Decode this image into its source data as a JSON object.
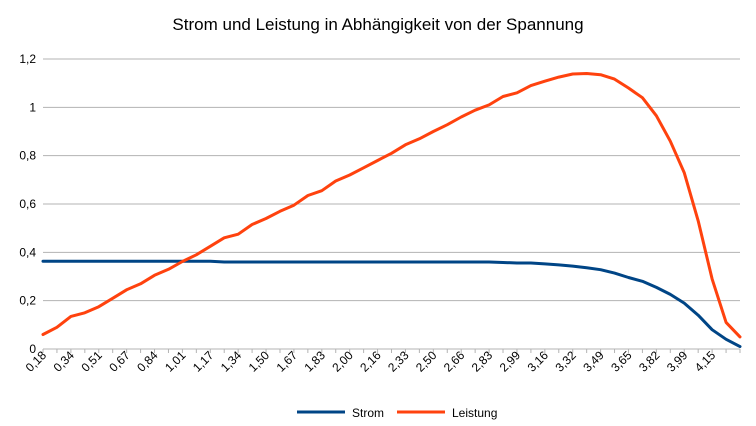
{
  "chart_data": {
    "type": "line",
    "title": "Strom und Leistung in Abhängigkeit von der Spannung",
    "xlabel": "",
    "ylabel": "",
    "ylim": [
      0,
      1.2
    ],
    "y_ticks": [
      "0",
      "0,2",
      "0,4",
      "0,6",
      "0,8",
      "1",
      "1,2"
    ],
    "y_tick_values": [
      0,
      0.2,
      0.4,
      0.6,
      0.8,
      1.0,
      1.2
    ],
    "x_tick_labels": [
      "0,18",
      "0,34",
      "0,51",
      "0,67",
      "0,84",
      "1,01",
      "1,17",
      "1,34",
      "1,50",
      "1,67",
      "1,83",
      "2,00",
      "2,16",
      "2,33",
      "2,50",
      "2,66",
      "2,83",
      "2,99",
      "3,16",
      "3,32",
      "3,49",
      "3,65",
      "3,82",
      "3,99",
      "4,15"
    ],
    "grid": true,
    "legend_position": "bottom",
    "x": [
      0.18,
      0.26,
      0.34,
      0.42,
      0.51,
      0.59,
      0.67,
      0.75,
      0.84,
      0.92,
      1.01,
      1.09,
      1.17,
      1.26,
      1.34,
      1.42,
      1.5,
      1.58,
      1.67,
      1.75,
      1.83,
      1.92,
      2.0,
      2.08,
      2.16,
      2.24,
      2.33,
      2.41,
      2.5,
      2.58,
      2.66,
      2.74,
      2.83,
      2.91,
      2.99,
      3.07,
      3.16,
      3.24,
      3.32,
      3.4,
      3.49,
      3.57,
      3.65,
      3.73,
      3.82,
      3.9,
      3.99,
      4.07,
      4.15,
      4.23,
      4.31
    ],
    "series": [
      {
        "name": "Strom",
        "color": "#004586",
        "values": [
          0.363,
          0.363,
          0.363,
          0.363,
          0.363,
          0.363,
          0.363,
          0.363,
          0.363,
          0.363,
          0.363,
          0.363,
          0.363,
          0.36,
          0.36,
          0.36,
          0.36,
          0.36,
          0.36,
          0.36,
          0.36,
          0.36,
          0.36,
          0.36,
          0.36,
          0.36,
          0.36,
          0.36,
          0.36,
          0.36,
          0.36,
          0.36,
          0.36,
          0.358,
          0.356,
          0.356,
          0.352,
          0.348,
          0.343,
          0.336,
          0.328,
          0.314,
          0.296,
          0.28,
          0.255,
          0.226,
          0.19,
          0.14,
          0.08,
          0.04,
          0.01
        ]
      },
      {
        "name": "Leistung",
        "color": "#ff420e",
        "values": [
          0.06,
          0.09,
          0.135,
          0.15,
          0.175,
          0.21,
          0.245,
          0.27,
          0.305,
          0.33,
          0.362,
          0.39,
          0.425,
          0.46,
          0.475,
          0.515,
          0.54,
          0.57,
          0.595,
          0.635,
          0.655,
          0.695,
          0.72,
          0.75,
          0.78,
          0.81,
          0.845,
          0.87,
          0.9,
          0.928,
          0.96,
          0.988,
          1.01,
          1.045,
          1.06,
          1.09,
          1.108,
          1.125,
          1.138,
          1.14,
          1.135,
          1.117,
          1.08,
          1.04,
          0.965,
          0.86,
          0.73,
          0.53,
          0.29,
          0.11,
          0.05
        ]
      }
    ]
  }
}
